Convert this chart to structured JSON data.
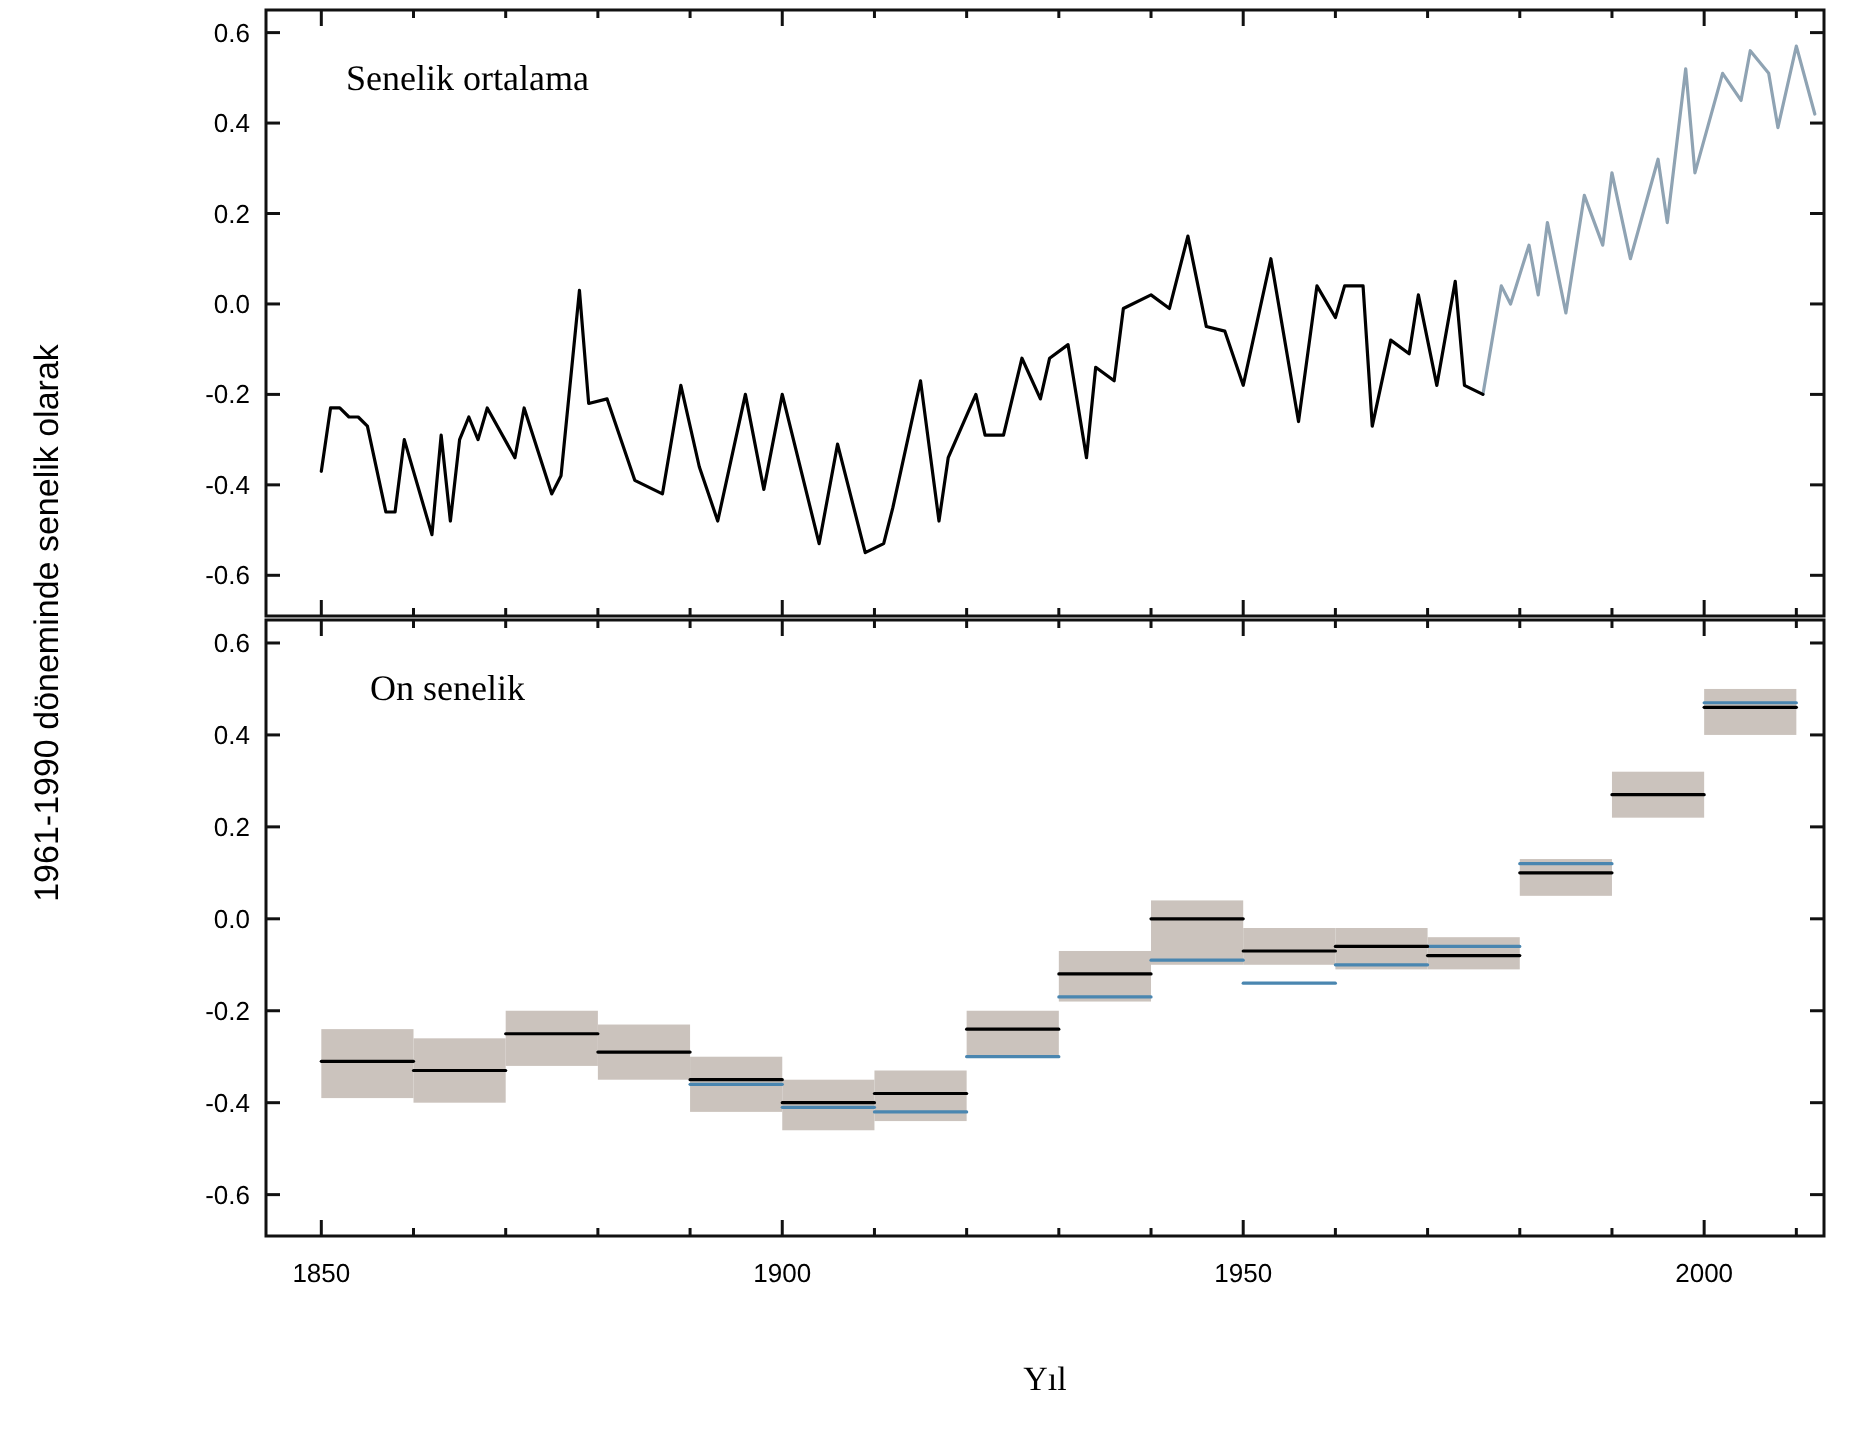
{
  "chart_data": [
    {
      "type": "line",
      "title": "Senelik ortalama",
      "ylabel": "1961-1990 döneminde senelik olarak",
      "xlim": [
        1844,
        2013
      ],
      "ylim": [
        -0.69,
        0.65
      ],
      "tick_labels": "y",
      "xticks": [
        1850,
        {
          "value": 1860,
          "label": null
        },
        {
          "value": 1870,
          "label": null
        },
        {
          "value": 1880,
          "label": null
        },
        {
          "value": 1890,
          "label": null
        },
        1900,
        {
          "value": 1910,
          "label": null
        },
        {
          "value": 1920,
          "label": null
        },
        {
          "value": 1930,
          "label": null
        },
        {
          "value": 1940,
          "label": null
        },
        1950,
        {
          "value": 1960,
          "label": null
        },
        {
          "value": 1970,
          "label": null
        },
        {
          "value": 1980,
          "label": null
        },
        {
          "value": 1990,
          "label": null
        },
        2000,
        {
          "value": 2010,
          "label": null
        }
      ],
      "yticks": [
        {
          "value": 0.6,
          "label": "0.6"
        },
        {
          "value": 0.4,
          "label": "0.4"
        },
        {
          "value": 0.2,
          "label": "0.2"
        },
        {
          "value": 0,
          "label": "0.0"
        },
        {
          "value": -0.2,
          "label": "-0.2"
        },
        {
          "value": -0.4,
          "label": "-0.4"
        },
        {
          "value": -0.6,
          "label": "-0.6"
        }
      ],
      "series": [
        {
          "color": "#8fa3b3",
          "x": [
            1976,
            1978,
            1979,
            1981,
            1982,
            1983,
            1985,
            1987,
            1989,
            1990,
            1992,
            1995,
            1996,
            1998,
            1999,
            2002,
            2004,
            2005,
            2007,
            2008,
            2010,
            2012
          ],
          "values": [
            -0.2,
            0.04,
            0.0,
            0.13,
            0.02,
            0.18,
            -0.02,
            0.24,
            0.13,
            0.29,
            0.1,
            0.32,
            0.18,
            0.52,
            0.29,
            0.51,
            0.45,
            0.56,
            0.51,
            0.39,
            0.57,
            0.42
          ]
        },
        {
          "color": "#000000",
          "x": [
            1850,
            1851,
            1852,
            1853,
            1854,
            1855,
            1857,
            1858,
            1859,
            1862,
            1863,
            1864,
            1865,
            1866,
            1867,
            1868,
            1871,
            1872,
            1875,
            1876,
            1878,
            1879,
            1881,
            1884,
            1887,
            1889,
            1891,
            1893,
            1896,
            1898,
            1900,
            1904,
            1906,
            1909,
            1911,
            1912,
            1915,
            1917,
            1918,
            1921,
            1922,
            1924,
            1926,
            1928,
            1929,
            1931,
            1933,
            1934,
            1936,
            1937,
            1940,
            1942,
            1944,
            1946,
            1948,
            1950,
            1953,
            1956,
            1958,
            1960,
            1961,
            1963,
            1964,
            1966,
            1968,
            1969,
            1971,
            1973,
            1974,
            1976
          ],
          "values": [
            -0.37,
            -0.23,
            -0.23,
            -0.25,
            -0.25,
            -0.27,
            -0.46,
            -0.46,
            -0.3,
            -0.51,
            -0.29,
            -0.48,
            -0.3,
            -0.25,
            -0.3,
            -0.23,
            -0.34,
            -0.23,
            -0.42,
            -0.38,
            0.03,
            -0.22,
            -0.21,
            -0.39,
            -0.42,
            -0.18,
            -0.36,
            -0.48,
            -0.2,
            -0.41,
            -0.2,
            -0.53,
            -0.31,
            -0.55,
            -0.53,
            -0.45,
            -0.17,
            -0.48,
            -0.34,
            -0.2,
            -0.29,
            -0.29,
            -0.12,
            -0.21,
            -0.12,
            -0.09,
            -0.34,
            -0.14,
            -0.17,
            -0.01,
            0.02,
            -0.01,
            0.15,
            -0.05,
            -0.06,
            -0.18,
            0.1,
            -0.26,
            0.04,
            -0.03,
            0.04,
            0.04,
            -0.27,
            -0.08,
            -0.11,
            0.02,
            -0.18,
            0.05,
            -0.18,
            -0.2
          ]
        }
      ]
    },
    {
      "type": "bar",
      "title": "On senelik",
      "xlabel": "Yıl",
      "xlim": [
        1844,
        2013
      ],
      "ylim": [
        -0.69,
        0.65
      ],
      "xticks": [
        1850,
        {
          "value": 1860,
          "label": null
        },
        {
          "value": 1870,
          "label": null
        },
        {
          "value": 1880,
          "label": null
        },
        {
          "value": 1890,
          "label": null
        },
        1900,
        {
          "value": 1910,
          "label": null
        },
        {
          "value": 1920,
          "label": null
        },
        {
          "value": 1930,
          "label": null
        },
        {
          "value": 1940,
          "label": null
        },
        1950,
        {
          "value": 1960,
          "label": null
        },
        {
          "value": 1970,
          "label": null
        },
        {
          "value": 1980,
          "label": null
        },
        {
          "value": 1990,
          "label": null
        },
        2000,
        {
          "value": 2010,
          "label": null
        }
      ],
      "yticks": [
        {
          "value": 0.6,
          "label": "0.6"
        },
        {
          "value": 0.4,
          "label": "0.4"
        },
        {
          "value": 0.2,
          "label": "0.2"
        },
        {
          "value": 0,
          "label": "0.0"
        },
        {
          "value": -0.2,
          "label": "-0.2"
        },
        {
          "value": -0.4,
          "label": "-0.4"
        },
        {
          "value": -0.6,
          "label": "-0.6"
        }
      ],
      "x": [
        1855,
        1865,
        1875,
        1885,
        1895,
        1905,
        1915,
        1925,
        1935,
        1945,
        1955,
        1965,
        1975,
        1985,
        1995,
        2005
      ],
      "series": [
        {
          "color": "#cbc3bd",
          "base": [
            -0.39,
            -0.4,
            -0.32,
            -0.35,
            -0.42,
            -0.46,
            -0.44,
            -0.3,
            -0.18,
            -0.1,
            -0.1,
            -0.11,
            -0.11,
            0.05,
            0.22,
            0.4
          ],
          "values": [
            0.15,
            0.14,
            0.12,
            0.12,
            0.12,
            0.11,
            0.11,
            0.1,
            0.11,
            0.14,
            0.08,
            0.09,
            0.07,
            0.08,
            0.1,
            0.1
          ]
        },
        {
          "type": "line",
          "color": "#4a86b0",
          "x": [
            1890,
            1900
          ],
          "values": [
            -0.36,
            -0.36
          ]
        },
        {
          "type": "line",
          "color": "#4a86b0",
          "x": [
            1900,
            1910
          ],
          "values": [
            -0.41,
            -0.41
          ]
        },
        {
          "type": "line",
          "color": "#4a86b0",
          "x": [
            1910,
            1920
          ],
          "values": [
            -0.42,
            -0.42
          ]
        },
        {
          "type": "line",
          "color": "#4a86b0",
          "x": [
            1920,
            1930
          ],
          "values": [
            -0.3,
            -0.3
          ]
        },
        {
          "type": "line",
          "color": "#4a86b0",
          "x": [
            1930,
            1940
          ],
          "values": [
            -0.17,
            -0.17
          ]
        },
        {
          "type": "line",
          "color": "#4a86b0",
          "x": [
            1940,
            1950
          ],
          "values": [
            -0.09,
            -0.09
          ]
        },
        {
          "type": "line",
          "color": "#4a86b0",
          "x": [
            1950,
            1960
          ],
          "values": [
            -0.14,
            -0.14
          ]
        },
        {
          "type": "line",
          "color": "#4a86b0",
          "x": [
            1960,
            1970
          ],
          "values": [
            -0.1,
            -0.1
          ]
        },
        {
          "type": "line",
          "color": "#4a86b0",
          "x": [
            1970,
            1980
          ],
          "values": [
            -0.06,
            -0.06
          ]
        },
        {
          "type": "line",
          "color": "#4a86b0",
          "x": [
            1980,
            1990
          ],
          "values": [
            0.12,
            0.12
          ]
        },
        {
          "type": "line",
          "color": "#4a86b0",
          "x": [
            2000,
            2010
          ],
          "values": [
            0.47,
            0.47
          ]
        },
        {
          "type": "line",
          "color": "#000000",
          "x": [
            1850,
            1860
          ],
          "values": [
            -0.31,
            -0.31
          ]
        },
        {
          "type": "line",
          "color": "#000000",
          "x": [
            1860,
            1870
          ],
          "values": [
            -0.33,
            -0.33
          ]
        },
        {
          "type": "line",
          "color": "#000000",
          "x": [
            1870,
            1880
          ],
          "values": [
            -0.25,
            -0.25
          ]
        },
        {
          "type": "line",
          "color": "#000000",
          "x": [
            1880,
            1890
          ],
          "values": [
            -0.29,
            -0.29
          ]
        },
        {
          "type": "line",
          "color": "#000000",
          "x": [
            1890,
            1900
          ],
          "values": [
            -0.35,
            -0.35
          ]
        },
        {
          "type": "line",
          "color": "#000000",
          "x": [
            1900,
            1910
          ],
          "values": [
            -0.4,
            -0.4
          ]
        },
        {
          "type": "line",
          "color": "#000000",
          "x": [
            1910,
            1920
          ],
          "values": [
            -0.38,
            -0.38
          ]
        },
        {
          "type": "line",
          "color": "#000000",
          "x": [
            1920,
            1930
          ],
          "values": [
            -0.24,
            -0.24
          ]
        },
        {
          "type": "line",
          "color": "#000000",
          "x": [
            1930,
            1940
          ],
          "values": [
            -0.12,
            -0.12
          ]
        },
        {
          "type": "line",
          "color": "#000000",
          "x": [
            1940,
            1950
          ],
          "values": [
            0.0,
            0.0
          ]
        },
        {
          "type": "line",
          "color": "#000000",
          "x": [
            1950,
            1960
          ],
          "values": [
            -0.07,
            -0.07
          ]
        },
        {
          "type": "line",
          "color": "#000000",
          "x": [
            1960,
            1970
          ],
          "values": [
            -0.06,
            -0.06
          ]
        },
        {
          "type": "line",
          "color": "#000000",
          "x": [
            1970,
            1980
          ],
          "values": [
            -0.08,
            -0.08
          ]
        },
        {
          "type": "line",
          "color": "#000000",
          "x": [
            1980,
            1990
          ],
          "values": [
            0.1,
            0.1
          ]
        },
        {
          "type": "line",
          "color": "#000000",
          "x": [
            1990,
            2000
          ],
          "values": [
            0.27,
            0.27
          ]
        },
        {
          "type": "line",
          "color": "#000000",
          "x": [
            2000,
            2010
          ],
          "values": [
            0.46,
            0.46
          ]
        }
      ]
    }
  ]
}
